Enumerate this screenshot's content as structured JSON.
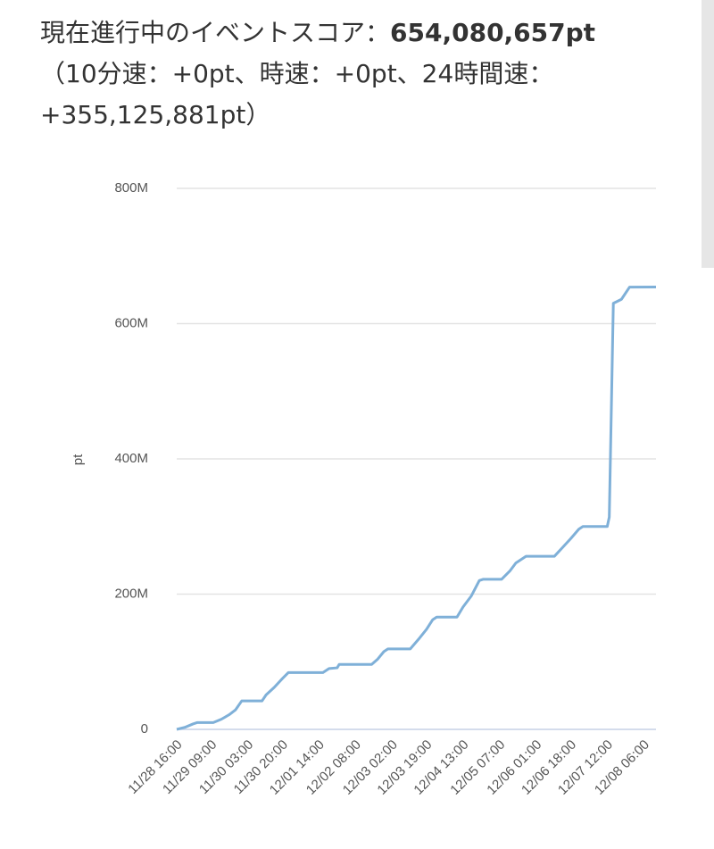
{
  "chart_data": {
    "type": "line",
    "title": "現在進行中のイベントスコア：",
    "score": "654,080,657pt",
    "subtitle": "（10分速：+0pt、時速：+0pt、24時間速：+355,125,881pt）",
    "y_label": "pt",
    "color": "#7fb0d8",
    "x": [
      "11/28 16:00",
      "11/28 20:00",
      "11/29 00:00",
      "11/29 02:00",
      "11/29 10:00",
      "11/29 14:00",
      "11/29 18:00",
      "11/29 21:00",
      "11/30 00:00",
      "11/30 10:00",
      "11/30 12:00",
      "11/30 16:00",
      "11/30 20:00",
      "11/30 23:00",
      "12/01 16:00",
      "12/01 19:00",
      "12/01 23:00",
      "12/02 00:00",
      "12/02 16:00",
      "12/02 19:00",
      "12/02 22:00",
      "12/03 00:00",
      "12/03 11:00",
      "12/03 15:00",
      "12/03 19:00",
      "12/03 22:00",
      "12/04 00:00",
      "12/04 10:00",
      "12/04 13:00",
      "12/04 17:00",
      "12/04 21:00",
      "12/04 23:00",
      "12/05 08:00",
      "12/05 12:00",
      "12/05 15:00",
      "12/05 20:00",
      "12/06 10:00",
      "12/06 14:00",
      "12/06 18:00",
      "12/06 22:00",
      "12/07 00:00",
      "12/07 12:00",
      "12/07 13:00",
      "12/07 14:00",
      "12/07 15:00",
      "12/07 19:00",
      "12/07 23:00",
      "12/08 12:00"
    ],
    "values": [
      0,
      3000000,
      8000000,
      10000000,
      10000000,
      15000000,
      22000000,
      29000000,
      42000000,
      42000000,
      51000000,
      62000000,
      75000000,
      84000000,
      84000000,
      90000000,
      91000000,
      96000000,
      96000000,
      104000000,
      115000000,
      119000000,
      119000000,
      133000000,
      148000000,
      162000000,
      166000000,
      166000000,
      181000000,
      197000000,
      220000000,
      222000000,
      222000000,
      234000000,
      246000000,
      256000000,
      256000000,
      269000000,
      282000000,
      296000000,
      300000000,
      300000000,
      314000000,
      471000000,
      630000000,
      636000000,
      654000000,
      654080657
    ],
    "ylim": [
      0,
      800000000
    ],
    "yticks": [
      0,
      {
        "value": 200000000,
        "label": "200M"
      },
      {
        "value": 400000000,
        "label": "400M"
      },
      {
        "value": 600000000,
        "label": "600M"
      },
      {
        "value": 800000000,
        "label": "800M"
      }
    ],
    "xticks": [
      "11/28 16:00",
      "11/29 09:00",
      "11/30 03:00",
      "11/30 20:00",
      "12/01 14:00",
      "12/02 08:00",
      "12/03 02:00",
      "12/03 19:00",
      "12/04 13:00",
      "12/05 07:00",
      "12/06 01:00",
      "12/06 18:00",
      "12/07 12:00",
      "12/08 06:00"
    ],
    "grid": true
  }
}
